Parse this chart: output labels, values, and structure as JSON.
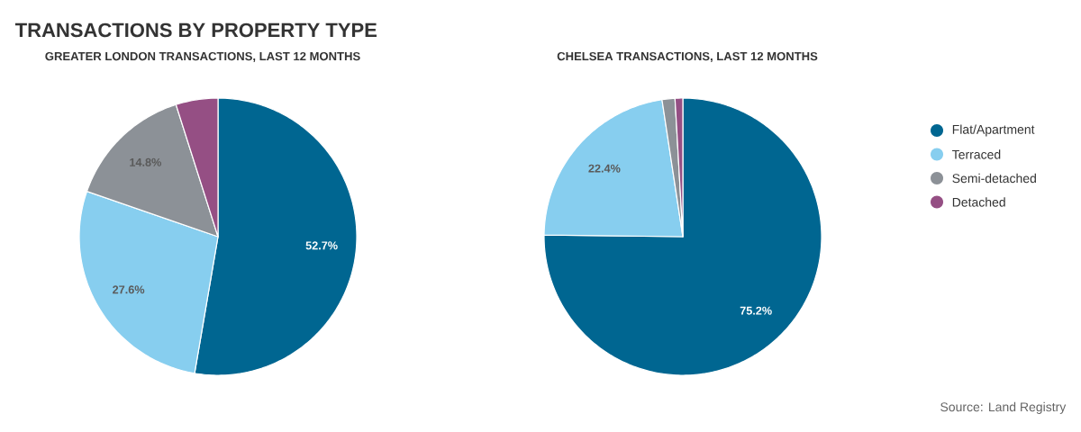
{
  "chart_data": [
    {
      "type": "pie",
      "title": "TRANSACTIONS BY PROPERTY TYPE",
      "subtitle": "GREATER LONDON TRANSACTIONS, LAST 12 MONTHS",
      "categories": [
        null,
        null,
        null,
        null
      ],
      "values": [
        52.7,
        27.6,
        14.8,
        4.9
      ],
      "colors": [
        "#006691",
        "#87ceef",
        "#8c9197",
        "#954f84"
      ],
      "value_labels": [
        "52.7%",
        "27.6%",
        "14.8%",
        null
      ],
      "legend": false
    },
    {
      "type": "pie",
      "subtitle": "CHELSEA TRANSACTIONS, LAST 12 MONTHS",
      "categories": [
        "Flat/Apartment",
        "Terraced",
        "Semi-detached",
        "Detached"
      ],
      "values": [
        75.2,
        22.4,
        1.5,
        0.9
      ],
      "colors": [
        "#006691",
        "#87ceef",
        "#8c9197",
        "#954f84"
      ],
      "value_labels": [
        "75.2%",
        "22.4%",
        null,
        null
      ],
      "legend": "right",
      "annotations": [
        "Source: Land Registry"
      ]
    }
  ]
}
